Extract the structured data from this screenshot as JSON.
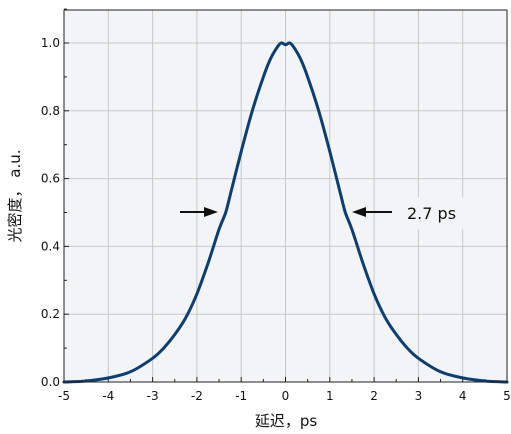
{
  "chart_data": {
    "type": "line",
    "xlabel": "延迟，ps",
    "ylabel": "光密度，  a.u.",
    "xlim": [
      -5,
      5
    ],
    "ylim": [
      0,
      1.1
    ],
    "grid": true,
    "x_ticks": [
      -5,
      -4,
      -3,
      -2,
      -1,
      0,
      1,
      2,
      3,
      4,
      5
    ],
    "x_tick_labels": [
      "-5",
      "-4",
      "-3",
      "-2",
      "-1",
      "0",
      "1",
      "2",
      "3",
      "4",
      "5"
    ],
    "y_ticks": [
      0,
      0.2,
      0.4,
      0.6,
      0.8,
      1.0
    ],
    "y_tick_labels": [
      "0.0",
      "0.2",
      "0.4",
      "0.6",
      "0.8",
      "1.0"
    ],
    "colors": {
      "line": "#0b3e72",
      "plot_bg": "#f2f4f5",
      "grid": "#c8c8c8"
    },
    "series": [
      {
        "x": [
          -5,
          -4.5,
          -4,
          -3.5,
          -3,
          -2.75,
          -2.5,
          -2.25,
          -2,
          -1.75,
          -1.5,
          -1.35,
          -1.25,
          -1,
          -0.75,
          -0.5,
          -0.35,
          -0.2,
          -0.1,
          0,
          0.1,
          0.2,
          0.35,
          0.5,
          0.75,
          1,
          1.25,
          1.35,
          1.5,
          1.75,
          2,
          2.25,
          2.5,
          2.75,
          3,
          3.5,
          4,
          4.5,
          5
        ],
        "y": [
          0.0,
          0.003,
          0.012,
          0.03,
          0.07,
          0.1,
          0.14,
          0.19,
          0.26,
          0.35,
          0.45,
          0.5,
          0.55,
          0.68,
          0.8,
          0.9,
          0.95,
          0.985,
          1.0,
          0.995,
          1.0,
          0.985,
          0.95,
          0.9,
          0.8,
          0.68,
          0.55,
          0.5,
          0.45,
          0.35,
          0.26,
          0.19,
          0.14,
          0.1,
          0.07,
          0.03,
          0.012,
          0.003,
          0.0
        ]
      }
    ],
    "annotation": {
      "text": "2.7 ps",
      "left_arrow_x": -1.45,
      "right_arrow_x": 1.45,
      "y": 0.5
    }
  }
}
